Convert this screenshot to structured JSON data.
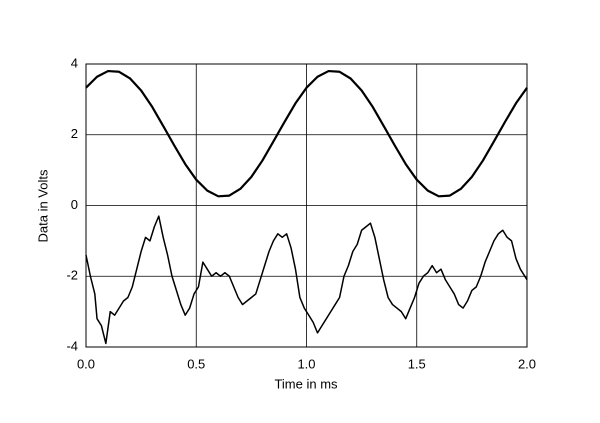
{
  "chart_data": {
    "type": "line",
    "x_label": "Time in ms",
    "y_label": "Data in Volts",
    "xlim": [
      0,
      2
    ],
    "ylim": [
      -4,
      4
    ],
    "xticks": [
      {
        "value": 0,
        "label": "0.0"
      },
      0.5,
      {
        "value": 1,
        "label": "1.0"
      },
      1.5,
      {
        "value": 2,
        "label": "2.0"
      }
    ],
    "yticks": [
      -4,
      -2,
      0,
      2,
      4
    ],
    "grid": true,
    "series": [
      {
        "color": "#000000",
        "x": [
          0,
          0.05,
          0.1,
          0.15,
          0.2,
          0.25,
          0.3,
          0.35,
          0.4,
          0.45,
          0.5,
          0.55,
          0.6,
          0.65,
          0.7,
          0.75,
          0.8,
          0.85,
          0.9,
          0.95,
          1,
          1.05,
          1.1,
          1.15,
          1.2,
          1.25,
          1.3,
          1.35,
          1.4,
          1.45,
          1.5,
          1.55,
          1.6,
          1.65,
          1.7,
          1.75,
          1.8,
          1.85,
          1.9,
          1.95,
          2
        ],
        "values": [
          3.33,
          3.64,
          3.8,
          3.78,
          3.59,
          3.25,
          2.79,
          2.25,
          1.7,
          1.17,
          0.73,
          0.42,
          0.26,
          0.28,
          0.47,
          0.81,
          1.27,
          1.81,
          2.36,
          2.89,
          3.33,
          3.64,
          3.8,
          3.78,
          3.59,
          3.25,
          2.79,
          2.25,
          1.7,
          1.17,
          0.73,
          0.42,
          0.26,
          0.28,
          0.47,
          0.81,
          1.27,
          1.81,
          2.36,
          2.89,
          3.33
        ]
      },
      {
        "color": "#000000",
        "x": [
          0,
          0.02,
          0.04,
          0.05,
          0.07,
          0.09,
          0.11,
          0.13,
          0.15,
          0.17,
          0.19,
          0.21,
          0.23,
          0.25,
          0.27,
          0.29,
          0.31,
          0.33,
          0.35,
          0.37,
          0.39,
          0.41,
          0.43,
          0.45,
          0.47,
          0.49,
          0.51,
          0.53,
          0.55,
          0.57,
          0.59,
          0.61,
          0.63,
          0.65,
          0.67,
          0.69,
          0.71,
          0.73,
          0.75,
          0.77,
          0.79,
          0.81,
          0.83,
          0.85,
          0.87,
          0.89,
          0.91,
          0.93,
          0.95,
          0.97,
          0.99,
          1.01,
          1.03,
          1.05,
          1.07,
          1.09,
          1.11,
          1.13,
          1.15,
          1.17,
          1.19,
          1.21,
          1.23,
          1.25,
          1.27,
          1.29,
          1.31,
          1.33,
          1.35,
          1.37,
          1.39,
          1.41,
          1.43,
          1.45,
          1.47,
          1.49,
          1.51,
          1.53,
          1.55,
          1.57,
          1.59,
          1.61,
          1.63,
          1.65,
          1.67,
          1.69,
          1.71,
          1.73,
          1.75,
          1.77,
          1.79,
          1.81,
          1.83,
          1.85,
          1.87,
          1.89,
          1.91,
          1.93,
          1.95,
          1.97,
          2
        ],
        "values": [
          -1.4,
          -2.0,
          -2.5,
          -3.2,
          -3.4,
          -3.9,
          -3.0,
          -3.1,
          -2.9,
          -2.7,
          -2.6,
          -2.3,
          -1.8,
          -1.3,
          -0.9,
          -1.0,
          -0.6,
          -0.3,
          -0.9,
          -1.4,
          -2.0,
          -2.4,
          -2.8,
          -3.1,
          -2.9,
          -2.5,
          -2.3,
          -1.6,
          -1.8,
          -2.0,
          -1.9,
          -2.0,
          -1.9,
          -2.0,
          -2.3,
          -2.6,
          -2.8,
          -2.7,
          -2.6,
          -2.5,
          -2.1,
          -1.7,
          -1.3,
          -1.0,
          -0.8,
          -0.9,
          -0.8,
          -1.2,
          -1.8,
          -2.6,
          -2.9,
          -3.1,
          -3.3,
          -3.6,
          -3.4,
          -3.2,
          -3.0,
          -2.8,
          -2.6,
          -2.0,
          -1.7,
          -1.3,
          -1.1,
          -0.7,
          -0.6,
          -0.5,
          -0.9,
          -1.5,
          -2.1,
          -2.6,
          -2.8,
          -2.9,
          -3.0,
          -3.2,
          -2.9,
          -2.6,
          -2.2,
          -2.0,
          -1.9,
          -1.7,
          -1.9,
          -1.8,
          -2.1,
          -2.3,
          -2.5,
          -2.8,
          -2.9,
          -2.7,
          -2.4,
          -2.3,
          -2.0,
          -1.6,
          -1.3,
          -1.0,
          -0.8,
          -0.7,
          -0.9,
          -1.0,
          -1.5,
          -1.8,
          -2.1
        ]
      }
    ]
  }
}
